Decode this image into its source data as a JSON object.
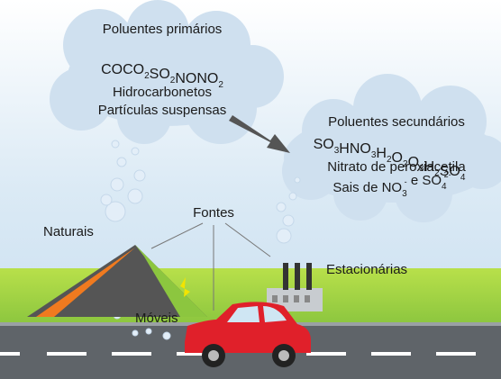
{
  "primary": {
    "title": "Poluentes primários",
    "formulas": [
      [
        {
          "text": "CO"
        }
      ],
      [
        {
          "text": "CO",
          "sub": "2"
        }
      ],
      [
        {
          "text": "SO",
          "sub": "2"
        }
      ],
      [
        {
          "text": "NO"
        }
      ],
      [
        {
          "text": "NO",
          "sub": "2"
        }
      ]
    ],
    "lines": [
      "Hidrocarbonetos",
      "Partículas suspensas"
    ]
  },
  "secondary": {
    "title": "Poluentes secundários",
    "formulas": [
      [
        {
          "text": "SO",
          "sub": "3"
        }
      ],
      [
        {
          "text": "HNO",
          "sub": "3"
        }
      ],
      [
        {
          "text": "H",
          "sub": "2"
        },
        {
          "text": "O",
          "sub": "2"
        }
      ],
      [
        {
          "text": "O",
          "sub": "3"
        }
      ],
      [
        {
          "text": "H",
          "sub": "2"
        },
        {
          "text": "SO",
          "sub": "4"
        }
      ]
    ],
    "lines": [
      "Nitrato de peroxiacetila"
    ],
    "salts": [
      {
        "text": "Sais de NO",
        "sub": "3",
        "sup": "-"
      },
      {
        "text": " e SO",
        "sub": "4",
        "sup": "2-"
      }
    ]
  },
  "sources": {
    "title": "Fontes",
    "natural": "Naturais",
    "stationary": "Estacionárias",
    "mobile": "Móveis"
  }
}
